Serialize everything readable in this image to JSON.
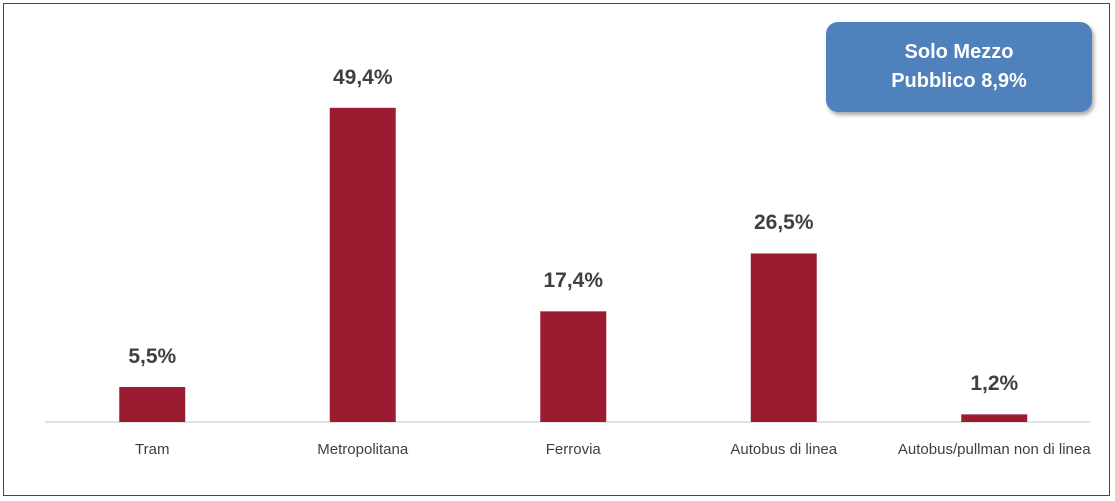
{
  "chart_data": {
    "type": "bar",
    "categories": [
      "Tram",
      "Metropolitana",
      "Ferrovia",
      "Autobus di linea",
      "Autobus/pullman non di linea"
    ],
    "values": [
      5.5,
      49.4,
      17.4,
      26.5,
      1.2
    ],
    "value_labels": [
      "5,5%",
      "49,4%",
      "17,4%",
      "26,5%",
      "1,2%"
    ],
    "color": "#9b1c31",
    "annotation": "Solo Mezzo Pubblico 8,9%"
  }
}
